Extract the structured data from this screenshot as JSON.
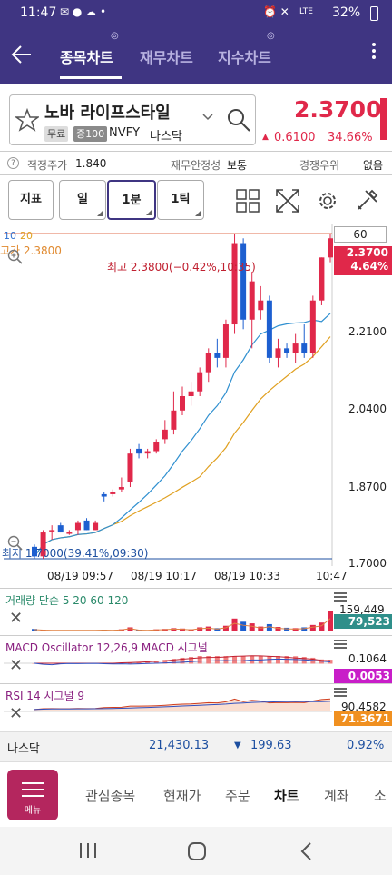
{
  "status_bar": {
    "time": "11:47",
    "battery": "32%",
    "network": "LTE"
  },
  "header": {
    "tabs": [
      {
        "label": "종목차트",
        "active": true
      },
      {
        "label": "재무차트",
        "active": false
      },
      {
        "label": "지수차트",
        "active": false
      }
    ]
  },
  "stock": {
    "name": "노바 라이프스타일",
    "badge_free": "무료",
    "badge_margin": "증100",
    "ticker": "NVFY",
    "market": "나스닥",
    "price": "2.3700",
    "change": "0.6100",
    "change_pct": "34.66%"
  },
  "info_row": {
    "fair_price_label": "적정주가",
    "fair_price_value": "1.840",
    "stability_label": "재무안정성",
    "stability_value": "보통",
    "rank_label": "경쟁우위",
    "rank_value": "없음"
  },
  "toolbar": {
    "indicator": "지표",
    "day": "일",
    "min": "1분",
    "tick": "1틱"
  },
  "chart": {
    "ma_periods": [
      "10",
      "20"
    ],
    "high_label": "고가 2.3800",
    "high_annot": "최고 2.3800(−0.42%,10:35)",
    "low_annot": "최저 1.7000(39.41%,09:30)",
    "period_box": "60",
    "price_labels": [
      "2.2100",
      "2.0400",
      "1.8700",
      "1.7000"
    ],
    "current_price": "2.3700",
    "current_pct": "4.64%",
    "time_labels": [
      "08/19 09:57",
      "08/19 10:17",
      "08/19 10:33",
      "10:47"
    ]
  },
  "indicators": {
    "volume": {
      "title": "거래량 단순 5 20 60 120",
      "max": "159,449",
      "value": "79,523"
    },
    "macd": {
      "title": "MACD Oscillator 12,26,9 MACD 시그널",
      "max": "0.1064",
      "value": "0.0053"
    },
    "rsi": {
      "title": "RSI 14 시그널 9",
      "max": "90.4582",
      "value": "71.3671"
    }
  },
  "index_bar": {
    "name": "나스닥",
    "value": "21,430.13",
    "change": "199.63",
    "pct": "0.92%"
  },
  "bottom_nav": {
    "menu": "메뉴",
    "items": [
      "관심종목",
      "현재가",
      "주문",
      "차트",
      "계좌",
      "소"
    ]
  },
  "colors": {
    "up": "#e0284a",
    "down": "#1d5fd0",
    "brand": "#3f3582"
  },
  "chart_data": {
    "type": "candlestick",
    "ylim": [
      1.7,
      2.38
    ],
    "candles": [
      {
        "o": 1.725,
        "h": 1.73,
        "l": 1.7,
        "c": 1.705
      },
      {
        "o": 1.705,
        "h": 1.76,
        "l": 1.7,
        "c": 1.755
      },
      {
        "o": 1.76,
        "h": 1.77,
        "l": 1.74,
        "c": 1.76
      },
      {
        "o": 1.77,
        "h": 1.775,
        "l": 1.755,
        "c": 1.755
      },
      {
        "o": 1.755,
        "h": 1.76,
        "l": 1.75,
        "c": 1.755
      },
      {
        "o": 1.76,
        "h": 1.78,
        "l": 1.75,
        "c": 1.775
      },
      {
        "o": 1.78,
        "h": 1.785,
        "l": 1.76,
        "c": 1.76
      },
      {
        "o": 1.76,
        "h": 1.78,
        "l": 1.76,
        "c": 1.775
      },
      {
        "o": 1.835,
        "h": 1.84,
        "l": 1.82,
        "c": 1.83
      },
      {
        "o": 1.835,
        "h": 1.845,
        "l": 1.83,
        "c": 1.84
      },
      {
        "o": 1.845,
        "h": 1.87,
        "l": 1.84,
        "c": 1.85
      },
      {
        "o": 1.86,
        "h": 1.93,
        "l": 1.85,
        "c": 1.92
      },
      {
        "o": 1.93,
        "h": 1.94,
        "l": 1.91,
        "c": 1.92
      },
      {
        "o": 1.92,
        "h": 1.93,
        "l": 1.91,
        "c": 1.925
      },
      {
        "o": 1.925,
        "h": 1.95,
        "l": 1.92,
        "c": 1.945
      },
      {
        "o": 1.95,
        "h": 1.99,
        "l": 1.94,
        "c": 1.97
      },
      {
        "o": 1.97,
        "h": 2.05,
        "l": 1.96,
        "c": 2.01
      },
      {
        "o": 2.01,
        "h": 2.06,
        "l": 2.0,
        "c": 2.04
      },
      {
        "o": 2.04,
        "h": 2.07,
        "l": 2.02,
        "c": 2.05
      },
      {
        "o": 2.05,
        "h": 2.1,
        "l": 2.04,
        "c": 2.09
      },
      {
        "o": 2.09,
        "h": 2.14,
        "l": 2.07,
        "c": 2.13
      },
      {
        "o": 2.13,
        "h": 2.16,
        "l": 2.1,
        "c": 2.12
      },
      {
        "o": 2.12,
        "h": 2.2,
        "l": 2.1,
        "c": 2.19
      },
      {
        "o": 2.19,
        "h": 2.38,
        "l": 2.17,
        "c": 2.36
      },
      {
        "o": 2.36,
        "h": 2.37,
        "l": 2.18,
        "c": 2.2
      },
      {
        "o": 2.2,
        "h": 2.3,
        "l": 2.14,
        "c": 2.28
      },
      {
        "o": 2.22,
        "h": 2.27,
        "l": 2.2,
        "c": 2.24
      },
      {
        "o": 2.24,
        "h": 2.25,
        "l": 2.11,
        "c": 2.12
      },
      {
        "o": 2.12,
        "h": 2.16,
        "l": 2.1,
        "c": 2.14
      },
      {
        "o": 2.14,
        "h": 2.15,
        "l": 2.12,
        "c": 2.13
      },
      {
        "o": 2.13,
        "h": 2.17,
        "l": 2.11,
        "c": 2.15
      },
      {
        "o": 2.15,
        "h": 2.19,
        "l": 2.12,
        "c": 2.13
      },
      {
        "o": 2.13,
        "h": 2.25,
        "l": 2.12,
        "c": 2.24
      },
      {
        "o": 2.24,
        "h": 2.33,
        "l": 2.23,
        "c": 2.33
      },
      {
        "o": 2.33,
        "h": 2.38,
        "l": 2.32,
        "c": 2.37
      }
    ],
    "volume": [
      4,
      2,
      1,
      1,
      1,
      1,
      1,
      1,
      2,
      1,
      3,
      8,
      2,
      1,
      3,
      4,
      6,
      5,
      3,
      8,
      10,
      6,
      12,
      30,
      22,
      18,
      10,
      16,
      9,
      7,
      6,
      8,
      14,
      20,
      50
    ]
  }
}
